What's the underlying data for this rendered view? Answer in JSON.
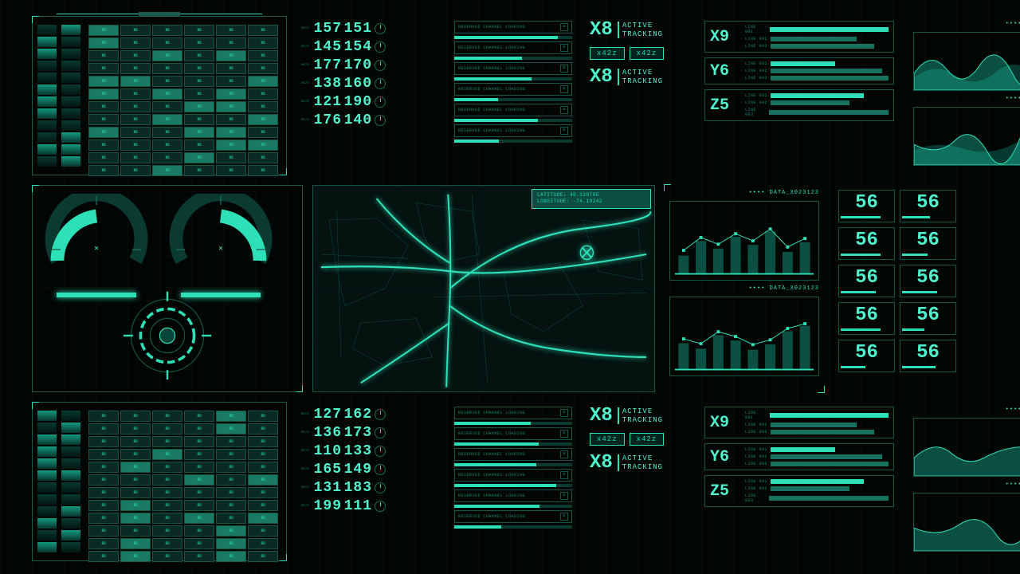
{
  "colors": {
    "bg": "#010504",
    "primary": "#1ed9b4",
    "bright": "#4ff5cf",
    "dim": "#1a6a58",
    "border": "#155548",
    "glow": "#2de0b8"
  },
  "matrix_cell_label": "R5",
  "barcode_segments": 12,
  "channels_top": [
    {
      "a": "157",
      "b": "151"
    },
    {
      "a": "145",
      "b": "154"
    },
    {
      "a": "177",
      "b": "170"
    },
    {
      "a": "138",
      "b": "160"
    },
    {
      "a": "121",
      "b": "190"
    },
    {
      "a": "176",
      "b": "140"
    }
  ],
  "channels_bottom": [
    {
      "a": "127",
      "b": "162"
    },
    {
      "a": "136",
      "b": "173"
    },
    {
      "a": "110",
      "b": "133"
    },
    {
      "a": "165",
      "b": "149"
    },
    {
      "a": "131",
      "b": "183"
    },
    {
      "a": "199",
      "b": "111"
    }
  ],
  "channel_small_label": "0573",
  "reserved_label": "RESERVED CHANNEL LOADING",
  "tracking": {
    "title": "ACTIVE\nTRACKING",
    "code": "X8",
    "tag": "x42z"
  },
  "xyz_top": [
    {
      "label": "X9",
      "bars": [
        85,
        60,
        72
      ],
      "legend": [
        "LINE 001",
        "LINE 002",
        "LINE 003"
      ]
    },
    {
      "label": "Y6",
      "bars": [
        45,
        78,
        82
      ],
      "legend": [
        "LINE 001",
        "LINE 002",
        "LINE 003"
      ]
    },
    {
      "label": "Z5",
      "bars": [
        65,
        55,
        90
      ],
      "legend": [
        "LINE 001",
        "LINE 002",
        "LINE 003"
      ]
    }
  ],
  "wave_label": "DATA_X023123",
  "map": {
    "lat_label": "LATITUDE: 40.329785",
    "lon_label": "LONGITUDE: -74.18242"
  },
  "chart_label": "DATA_X023123",
  "chart1": {
    "values": [
      35,
      62,
      48,
      70,
      55,
      80,
      42,
      60
    ]
  },
  "chart2": {
    "values": [
      50,
      40,
      65,
      55,
      38,
      48,
      72,
      82
    ]
  },
  "numgrid_value": "56",
  "numgrid_count": 10
}
